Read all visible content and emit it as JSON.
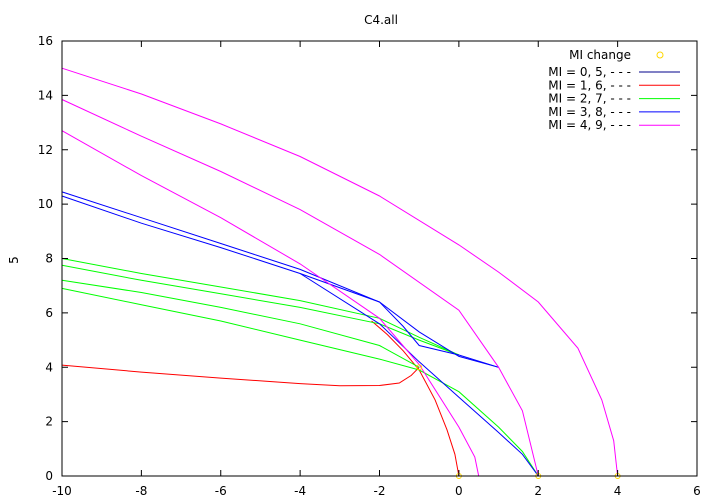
{
  "chart_data": {
    "type": "line",
    "title": "C4.all",
    "xlabel": "",
    "ylabel": "5",
    "xlim": [
      -10,
      6
    ],
    "ylim": [
      0,
      16
    ],
    "xticks": [
      -10,
      -8,
      -6,
      -4,
      -2,
      0,
      2,
      4,
      6
    ],
    "yticks": [
      0,
      2,
      4,
      6,
      8,
      10,
      12,
      14,
      16
    ],
    "grid": false,
    "legend_position": "top-right",
    "legend_title": "MI change",
    "marker_color": "#ffd700",
    "series": [
      {
        "name": "MI = 0, 5, - - -",
        "color": "#00008b",
        "curves": []
      },
      {
        "name": "MI = 1, 6, - - -",
        "color": "#ff0000",
        "curves": [
          [
            [
              -10,
              4.08
            ],
            [
              -8,
              3.82
            ],
            [
              -6,
              3.6
            ],
            [
              -4,
              3.4
            ],
            [
              -3,
              3.32
            ],
            [
              -2,
              3.33
            ],
            [
              -1.5,
              3.42
            ],
            [
              -1.2,
              3.7
            ],
            [
              -1,
              4.0
            ]
          ],
          [
            [
              -2.2,
              5.7
            ],
            [
              -1.8,
              5.2
            ],
            [
              -1.4,
              4.6
            ],
            [
              -1,
              3.9
            ],
            [
              -0.6,
              2.8
            ],
            [
              -0.3,
              1.7
            ],
            [
              -0.1,
              0.8
            ],
            [
              0,
              0
            ]
          ]
        ]
      },
      {
        "name": "MI = 2, 7, - - -",
        "color": "#00ff00",
        "curves": [
          [
            [
              -10,
              8.0
            ],
            [
              -8,
              7.45
            ],
            [
              -6,
              6.95
            ],
            [
              -4,
              6.45
            ],
            [
              -2,
              5.8
            ],
            [
              -1,
              5.1
            ],
            [
              0,
              4.45
            ]
          ],
          [
            [
              -10,
              7.75
            ],
            [
              -8,
              7.2
            ],
            [
              -6,
              6.7
            ],
            [
              -4,
              6.2
            ],
            [
              -2,
              5.6
            ],
            [
              -1,
              5.0
            ],
            [
              0,
              4.45
            ]
          ],
          [
            [
              -10,
              7.2
            ],
            [
              -8,
              6.75
            ],
            [
              -6,
              6.2
            ],
            [
              -4,
              5.6
            ],
            [
              -2,
              4.8
            ],
            [
              -1,
              4.0
            ]
          ],
          [
            [
              -10,
              6.9
            ],
            [
              -8,
              6.3
            ],
            [
              -6,
              5.7
            ],
            [
              -4,
              5.0
            ],
            [
              -2,
              4.3
            ],
            [
              -1,
              3.9
            ],
            [
              0,
              3.1
            ],
            [
              1,
              1.8
            ],
            [
              1.6,
              0.9
            ],
            [
              2,
              0
            ]
          ]
        ]
      },
      {
        "name": "MI = 3, 8, - - -",
        "color": "#0000ff",
        "curves": [
          [
            [
              -10,
              10.45
            ],
            [
              -8,
              9.5
            ],
            [
              -6,
              8.55
            ],
            [
              -4,
              7.6
            ],
            [
              -2,
              6.4
            ],
            [
              -1.4,
              5.5
            ],
            [
              -1,
              4.8
            ],
            [
              0,
              4.45
            ],
            [
              1,
              4.0
            ]
          ],
          [
            [
              -10,
              10.3
            ],
            [
              -8,
              9.3
            ],
            [
              -6,
              8.4
            ],
            [
              -4,
              7.45
            ],
            [
              -2,
              6.4
            ],
            [
              -1,
              5.3
            ],
            [
              0,
              4.4
            ],
            [
              1,
              4.0
            ]
          ],
          [
            [
              -4,
              7.45
            ],
            [
              -2,
              5.6
            ],
            [
              -1,
              4.2
            ],
            [
              0,
              2.9
            ],
            [
              1,
              1.6
            ],
            [
              1.6,
              0.8
            ],
            [
              2,
              0
            ]
          ]
        ]
      },
      {
        "name": "MI = 4, 9, - - -",
        "color": "#ff00ff",
        "curves": [
          [
            [
              -10,
              15.0
            ],
            [
              -8,
              14.05
            ],
            [
              -6,
              12.95
            ],
            [
              -4,
              11.75
            ],
            [
              -2,
              10.3
            ],
            [
              0,
              8.5
            ],
            [
              1,
              7.5
            ],
            [
              2,
              6.4
            ],
            [
              3,
              4.7
            ],
            [
              3.6,
              2.8
            ],
            [
              3.9,
              1.3
            ],
            [
              4,
              0
            ]
          ],
          [
            [
              -10,
              13.85
            ],
            [
              -8,
              12.5
            ],
            [
              -6,
              11.2
            ],
            [
              -4,
              9.8
            ],
            [
              -2,
              8.15
            ],
            [
              0,
              6.1
            ],
            [
              1,
              4.0
            ],
            [
              1.6,
              2.4
            ],
            [
              2,
              0
            ]
          ],
          [
            [
              -10,
              12.7
            ],
            [
              -8,
              11.05
            ],
            [
              -6,
              9.5
            ],
            [
              -4,
              7.8
            ],
            [
              -2,
              5.8
            ],
            [
              -1,
              4.1
            ],
            [
              0,
              1.8
            ],
            [
              0.4,
              0.7
            ],
            [
              0.5,
              0
            ]
          ]
        ]
      }
    ],
    "markers": [
      [
        -1,
        4.0
      ],
      [
        0,
        0
      ],
      [
        2,
        0
      ],
      [
        4,
        0
      ]
    ]
  }
}
